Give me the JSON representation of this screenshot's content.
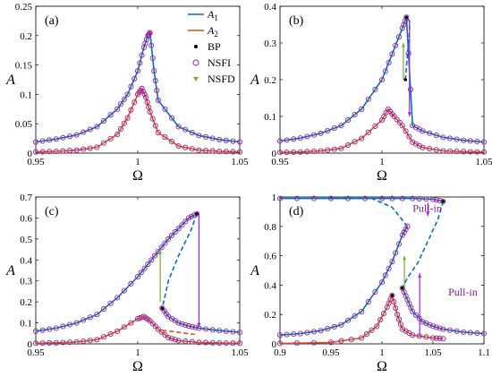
{
  "colors": {
    "A1": "#0072bd",
    "A2": "#d95319",
    "BP": "#000000",
    "NSFI": "#a020a0",
    "NSFD": "#77ac30",
    "jump": "#a020f0",
    "jumpUp": "#77ac30"
  },
  "legend": {
    "entries": [
      {
        "label": "A",
        "sub": "1",
        "kind": "line",
        "color": "#0072bd"
      },
      {
        "label": "A",
        "sub": "2",
        "kind": "line",
        "color": "#d95319"
      },
      {
        "label": "BP",
        "kind": "dot",
        "color": "#000000"
      },
      {
        "label": "NSFI",
        "kind": "circle",
        "color": "#a020a0"
      },
      {
        "label": "NSFD",
        "kind": "tri",
        "color": "#77ac30"
      }
    ]
  },
  "chart_data": [
    {
      "panel": "(a)",
      "type": "line",
      "xlabel": "Ω",
      "ylabel": "A",
      "xlim": [
        0.95,
        1.05
      ],
      "ylim": [
        0,
        0.25
      ],
      "xticks": [
        "0.95",
        "1",
        "1.05"
      ],
      "yticks": [
        "0",
        "0.05",
        "0.1",
        "0.15",
        "0.2",
        "0.25"
      ],
      "series": [
        {
          "name": "A1",
          "x": [
            0.95,
            0.96,
            0.97,
            0.98,
            0.99,
            0.995,
            1.0,
            1.003,
            1.005,
            1.006,
            1.008,
            1.01,
            1.02,
            1.03,
            1.04,
            1.05
          ],
          "y": [
            0.019,
            0.024,
            0.031,
            0.045,
            0.075,
            0.1,
            0.14,
            0.18,
            0.2,
            0.205,
            0.14,
            0.09,
            0.045,
            0.03,
            0.023,
            0.019
          ]
        },
        {
          "name": "A2",
          "x": [
            0.95,
            0.96,
            0.97,
            0.98,
            0.99,
            0.995,
            1.0,
            1.002,
            1.004,
            1.006,
            1.01,
            1.02,
            1.03,
            1.04,
            1.05
          ],
          "y": [
            0.002,
            0.003,
            0.005,
            0.01,
            0.032,
            0.06,
            0.1,
            0.11,
            0.095,
            0.07,
            0.035,
            0.012,
            0.005,
            0.003,
            0.002
          ]
        }
      ]
    },
    {
      "panel": "(b)",
      "type": "line",
      "xlabel": "Ω",
      "ylabel": "A",
      "xlim": [
        0.95,
        1.05
      ],
      "ylim": [
        0,
        0.4
      ],
      "xticks": [
        "0.95",
        "1",
        "1.05"
      ],
      "yticks": [
        "0",
        "0.1",
        "0.2",
        "0.3",
        "0.4"
      ],
      "series": [
        {
          "name": "A1",
          "x": [
            0.95,
            0.96,
            0.97,
            0.98,
            0.99,
            1.0,
            1.005,
            1.01,
            1.012,
            1.015,
            1.02,
            1.03,
            1.04,
            1.05
          ],
          "y": [
            0.033,
            0.041,
            0.054,
            0.075,
            0.12,
            0.2,
            0.27,
            0.34,
            0.37,
            0.075,
            0.06,
            0.043,
            0.035,
            0.03
          ]
        },
        {
          "name": "A2",
          "x": [
            0.95,
            0.96,
            0.97,
            0.98,
            0.99,
            1.0,
            1.003,
            1.006,
            1.01,
            1.015,
            1.02,
            1.03,
            1.04,
            1.05
          ],
          "y": [
            0.002,
            0.003,
            0.006,
            0.013,
            0.04,
            0.09,
            0.12,
            0.1,
            0.075,
            0.03,
            0.015,
            0.006,
            0.004,
            0.003
          ]
        }
      ],
      "unstable_branch": {
        "x": [
          1.0115,
          1.0125,
          1.0135,
          1.0135,
          1.012
        ],
        "y": [
          0.2,
          0.27,
          0.33,
          0.36,
          0.37
        ]
      }
    },
    {
      "panel": "(c)",
      "type": "line",
      "xlabel": "Ω",
      "ylabel": "A",
      "xlim": [
        0.95,
        1.05
      ],
      "ylim": [
        0,
        0.7
      ],
      "xticks": [
        "0.95",
        "1",
        "1.05"
      ],
      "yticks": [
        "0",
        "0.1",
        "0.2",
        "0.3",
        "0.4",
        "0.5",
        "0.6",
        "0.7"
      ],
      "series": [
        {
          "name": "A1",
          "x": [
            0.95,
            0.96,
            0.97,
            0.98,
            0.99,
            1.0,
            1.005,
            1.01,
            1.015,
            1.02,
            1.025,
            1.029
          ],
          "y": [
            0.06,
            0.075,
            0.1,
            0.14,
            0.22,
            0.32,
            0.38,
            0.44,
            0.5,
            0.55,
            0.6,
            0.62
          ]
        },
        {
          "name": "A1-lower",
          "x": [
            1.012,
            1.015,
            1.02,
            1.025,
            1.03,
            1.04,
            1.05
          ],
          "y": [
            0.17,
            0.13,
            0.1,
            0.085,
            0.075,
            0.063,
            0.055
          ]
        },
        {
          "name": "A2",
          "x": [
            0.95,
            0.96,
            0.97,
            0.98,
            0.99,
            1.0,
            1.003,
            1.006,
            1.01,
            1.015,
            1.02,
            1.03,
            1.04,
            1.05
          ],
          "y": [
            0.003,
            0.005,
            0.009,
            0.02,
            0.06,
            0.12,
            0.13,
            0.11,
            0.07,
            0.03,
            0.015,
            0.007,
            0.004,
            0.003
          ]
        }
      ]
    },
    {
      "panel": "(d)",
      "type": "line",
      "xlabel": "Ω",
      "ylabel": "A",
      "xlim": [
        0.9,
        1.1
      ],
      "ylim": [
        0,
        1
      ],
      "xticks": [
        "0.9",
        "0.95",
        "1",
        "1.05",
        "1.1"
      ],
      "yticks": [
        "0",
        "0.2",
        "0.4",
        "0.6",
        "0.8",
        "1"
      ],
      "series": [
        {
          "name": "A1",
          "x": [
            0.9,
            0.92,
            0.94,
            0.96,
            0.98,
            1.0,
            1.01,
            1.02,
            1.025
          ],
          "y": [
            0.06,
            0.07,
            0.09,
            0.13,
            0.22,
            0.42,
            0.56,
            0.74,
            0.8
          ]
        },
        {
          "name": "A1-lower",
          "x": [
            1.02,
            1.025,
            1.03,
            1.04,
            1.05,
            1.06,
            1.08,
            1.1
          ],
          "y": [
            0.38,
            0.3,
            0.22,
            0.15,
            0.12,
            0.1,
            0.08,
            0.07
          ]
        },
        {
          "name": "A1-top",
          "x": [
            0.9,
            0.95,
            1.0,
            1.03,
            1.05,
            1.06
          ],
          "y": [
            0.99,
            0.99,
            0.99,
            0.99,
            0.985,
            0.97
          ]
        },
        {
          "name": "A2",
          "x": [
            0.9,
            0.95,
            0.98,
            0.995,
            1.005,
            1.01,
            1.015,
            1.02,
            1.03,
            1.05,
            1.06
          ],
          "y": [
            0.003,
            0.01,
            0.04,
            0.12,
            0.25,
            0.33,
            0.2,
            0.1,
            0.06,
            0.04,
            0.035
          ]
        }
      ],
      "annotations": [
        "Pull-in",
        "Pull-in"
      ]
    }
  ]
}
